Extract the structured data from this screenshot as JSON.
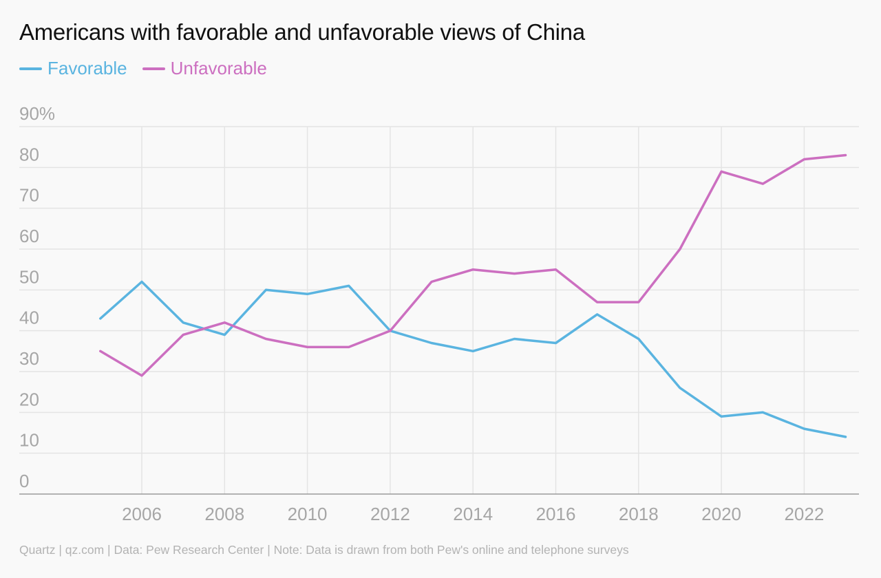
{
  "colors": {
    "favorable": "#5ab4e0",
    "unfavorable": "#cc6fc0",
    "grid": "#e4e4e4",
    "axis": "#9a9a9a",
    "tick_text": "#a6a6a6"
  },
  "legend": {
    "favorable": "Favorable",
    "unfavorable": "Unfavorable"
  },
  "footer": {
    "source": "Quartz | qz.com | Data: Pew Research Center | Note: Data is drawn from both Pew's online and telephone surveys"
  },
  "chart_data": {
    "type": "line",
    "title": "Americans with favorable and unfavorable views of China",
    "xlabel": "",
    "ylabel": "",
    "x": [
      2005,
      2006,
      2007,
      2008,
      2009,
      2010,
      2011,
      2012,
      2013,
      2014,
      2015,
      2016,
      2017,
      2018,
      2019,
      2020,
      2021,
      2022,
      2023
    ],
    "series": [
      {
        "name": "Favorable",
        "color": "#5ab4e0",
        "values": [
          43,
          52,
          42,
          39,
          50,
          49,
          51,
          40,
          37,
          35,
          38,
          37,
          44,
          38,
          26,
          19,
          20,
          16,
          14
        ]
      },
      {
        "name": "Unfavorable",
        "color": "#cc6fc0",
        "values": [
          35,
          29,
          39,
          42,
          38,
          36,
          36,
          40,
          52,
          55,
          54,
          55,
          47,
          47,
          60,
          79,
          76,
          82,
          83
        ]
      }
    ],
    "xlim": [
      2004,
      2024
    ],
    "ylim": [
      0,
      90
    ],
    "x_ticks": [
      2006,
      2008,
      2010,
      2012,
      2014,
      2016,
      2018,
      2020,
      2022
    ],
    "x_tick_labels": [
      "2006",
      "2008",
      "2010",
      "2012",
      "2014",
      "2016",
      "2018",
      "2020",
      "2022"
    ],
    "y_ticks": [
      0,
      10,
      20,
      30,
      40,
      50,
      60,
      70,
      80,
      90
    ],
    "y_tick_labels": [
      "0",
      "10",
      "20",
      "30",
      "40",
      "50",
      "60",
      "70",
      "80",
      "90%"
    ],
    "grid": true,
    "legend_position": "top-left"
  }
}
